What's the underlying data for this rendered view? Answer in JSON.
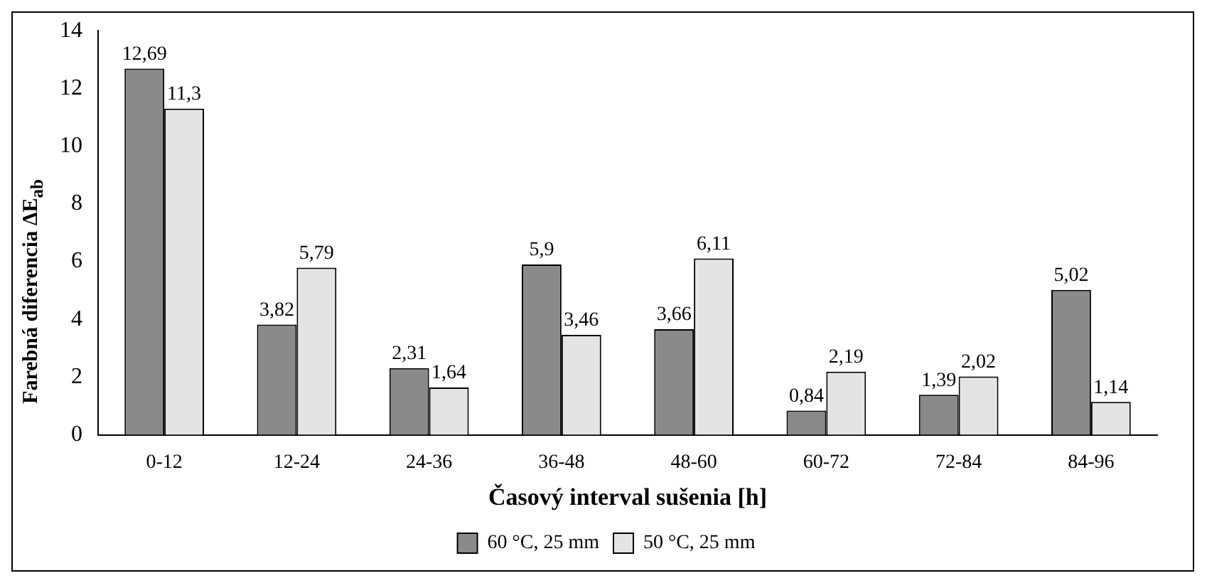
{
  "chart_data": {
    "type": "bar",
    "xlabel": "Časový interval sušenia [h]",
    "ylabel": "Farebná diferencia ΔE$_{ab}$",
    "categories": [
      "0-12",
      "12-24",
      "24-36",
      "36-48",
      "48-60",
      "60-72",
      "72-84",
      "84-96"
    ],
    "series": [
      {
        "name": "60 °C, 25 mm",
        "color": "#8a8a8a",
        "values": [
          12.69,
          3.82,
          2.31,
          5.9,
          3.66,
          0.84,
          1.39,
          5.02
        ],
        "value_labels": [
          "12,69",
          "3,82",
          "2,31",
          "5,9",
          "3,66",
          "0,84",
          "1,39",
          "5,02"
        ]
      },
      {
        "name": "50 °C, 25 mm",
        "color": "#e4e4e4",
        "values": [
          11.3,
          5.79,
          1.64,
          3.46,
          6.11,
          2.19,
          2.02,
          1.14
        ],
        "value_labels": [
          "11,3",
          "5,79",
          "1,64",
          "3,46",
          "6,11",
          "2,19",
          "2,02",
          "1,14"
        ]
      }
    ],
    "ylim": [
      0,
      14
    ],
    "yticks": [
      0,
      2,
      4,
      6,
      8,
      10,
      12,
      14
    ],
    "grid": false,
    "legend": "bottom"
  }
}
